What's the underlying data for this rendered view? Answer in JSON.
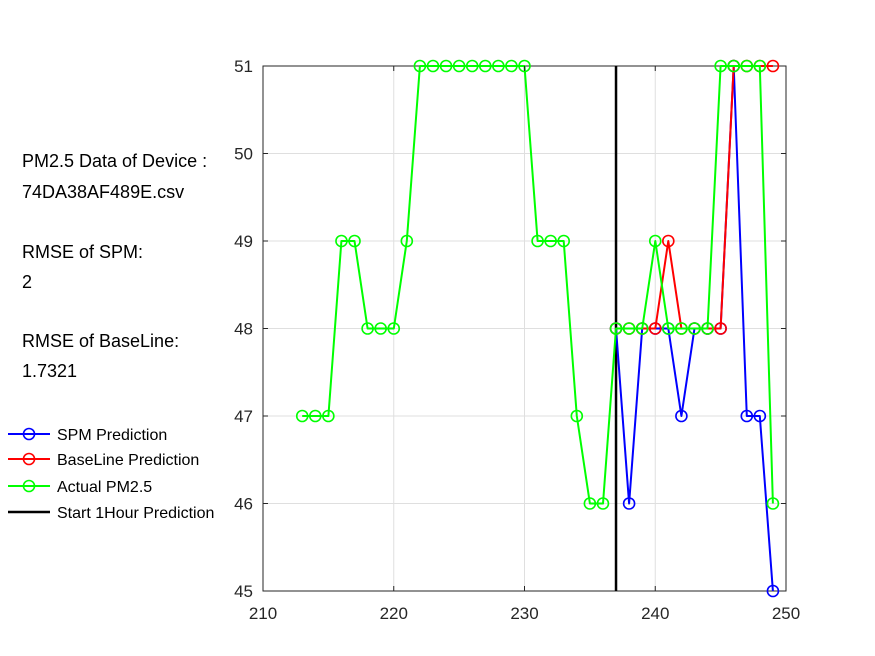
{
  "info": {
    "title_line1": "PM2.5 Data of Device :",
    "title_line2": "74DA38AF489E.csv",
    "rmse_spm_label": "RMSE of SPM:",
    "rmse_spm_value": "2",
    "rmse_baseline_label": "RMSE of BaseLine:",
    "rmse_baseline_value": "1.7321"
  },
  "chart_data": {
    "type": "line",
    "title": "",
    "xlabel": "",
    "ylabel": "",
    "xlim": [
      210,
      250
    ],
    "ylim": [
      45,
      51
    ],
    "xticks": [
      210,
      220,
      230,
      240,
      250
    ],
    "yticks": [
      45,
      46,
      47,
      48,
      49,
      50,
      51
    ],
    "grid": true,
    "legend_position": "outside-left",
    "vertical_line": {
      "name": "Start 1Hour Prediction",
      "x": 237,
      "color": "#000000"
    },
    "series": [
      {
        "name": "SPM Prediction",
        "color": "#0000ff",
        "marker": "circle",
        "x": [
          237,
          238,
          239,
          240,
          241,
          242,
          243,
          244,
          245,
          246,
          247,
          248,
          249
        ],
        "y": [
          48,
          46,
          48,
          48,
          48,
          47,
          48,
          48,
          48,
          51,
          47,
          47,
          45
        ]
      },
      {
        "name": "BaseLine Prediction",
        "color": "#ff0000",
        "marker": "circle",
        "x": [
          237,
          238,
          239,
          240,
          241,
          242,
          243,
          244,
          245,
          246,
          247,
          248,
          249
        ],
        "y": [
          48,
          48,
          48,
          48,
          49,
          48,
          48,
          48,
          48,
          51,
          51,
          51,
          51
        ]
      },
      {
        "name": "Actual PM2.5",
        "color": "#00ff00",
        "marker": "circle",
        "x": [
          213,
          214,
          215,
          216,
          217,
          218,
          219,
          220,
          221,
          222,
          223,
          224,
          225,
          226,
          227,
          228,
          229,
          230,
          231,
          232,
          233,
          234,
          235,
          236,
          237,
          238,
          239,
          240,
          241,
          242,
          243,
          244,
          245,
          246,
          247,
          248,
          249
        ],
        "y": [
          47,
          47,
          47,
          49,
          49,
          48,
          48,
          48,
          49,
          51,
          51,
          51,
          51,
          51,
          51,
          51,
          51,
          51,
          49,
          49,
          49,
          47,
          46,
          46,
          48,
          48,
          48,
          49,
          48,
          48,
          48,
          48,
          51,
          51,
          51,
          51,
          46
        ]
      }
    ]
  }
}
